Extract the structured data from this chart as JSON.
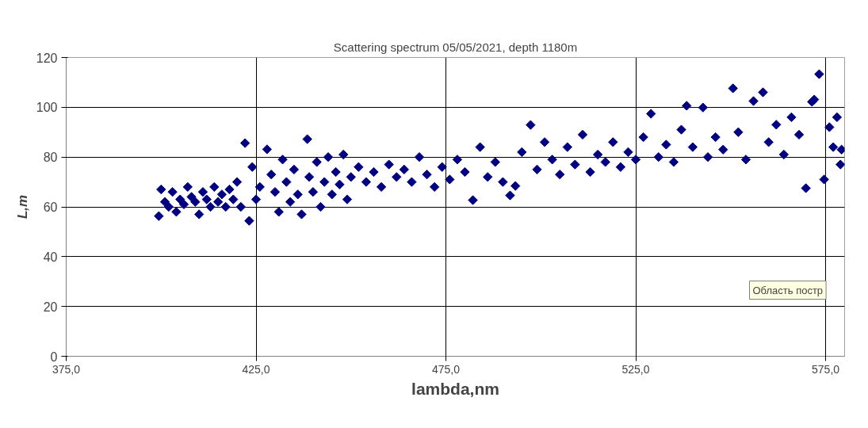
{
  "chart_data": {
    "type": "scatter",
    "title": "Scattering spectrum 05/05/2021, depth 1180m",
    "xlabel": "lambda,nm",
    "ylabel": "L,m",
    "annotations": [
      "Область постр"
    ],
    "xlim": [
      375,
      580
    ],
    "ylim": [
      0,
      120
    ],
    "xticks": [
      {
        "value": 375,
        "label": "375,0"
      },
      {
        "value": 425,
        "label": "425,0"
      },
      {
        "value": 475,
        "label": "475,0"
      },
      {
        "value": 525,
        "label": "525,0"
      },
      {
        "value": 575,
        "label": "575,0"
      }
    ],
    "yticks": [
      0,
      20,
      40,
      60,
      80,
      100,
      120
    ],
    "grid": true,
    "marker": "diamond",
    "x": [
      399.4,
      400,
      401,
      402,
      403,
      404,
      405,
      406,
      407,
      408,
      409,
      410,
      411,
      412,
      413,
      414,
      415,
      416,
      417,
      418,
      419,
      420,
      421,
      422.1,
      423.2,
      424,
      425,
      426,
      427.9,
      429,
      430,
      431,
      432,
      433,
      434,
      435,
      436,
      437,
      438.5,
      439,
      440,
      441,
      442,
      443,
      444,
      445,
      446,
      447,
      448,
      449,
      450,
      452,
      454,
      456,
      458,
      460,
      462,
      464,
      466,
      468,
      470,
      472,
      474,
      476,
      478,
      480,
      482.1,
      484,
      486,
      488,
      490,
      491.9,
      493.3,
      495,
      497.3,
      499,
      501,
      503,
      505,
      507,
      509,
      511,
      513,
      515,
      517,
      519,
      521,
      523,
      525,
      527,
      529,
      531,
      533,
      535,
      537,
      538.4,
      540,
      542.7,
      544,
      546,
      548,
      550.6,
      552,
      554,
      556,
      558.5,
      560,
      562,
      564,
      566,
      568,
      569.8,
      571.4,
      572,
      573.3,
      574.6,
      576,
      577,
      578,
      578.9,
      579.2
    ],
    "series": [
      {
        "color": "#000080",
        "values": [
          56.3,
          67,
          62,
          60,
          66,
          58,
          63,
          61,
          68,
          64,
          62,
          57,
          66,
          63,
          60,
          68,
          62,
          65,
          60,
          67,
          63,
          70,
          60,
          85.6,
          54.4,
          76,
          63,
          68,
          83.1,
          73,
          66,
          58,
          79,
          70,
          62,
          75,
          65,
          57,
          87.2,
          72,
          66,
          78,
          60,
          70,
          80,
          65,
          74,
          69,
          81,
          63,
          72,
          76,
          70,
          74,
          68,
          77,
          72,
          75,
          70,
          80,
          73,
          68,
          76,
          71,
          79,
          74,
          62.7,
          84,
          72,
          78,
          70,
          64.6,
          68.4,
          82,
          92.9,
          75,
          86,
          79,
          73,
          84,
          77,
          89,
          74,
          81,
          78,
          86,
          76,
          82,
          79,
          88,
          97.4,
          80,
          85,
          78,
          91,
          100.6,
          84,
          99.9,
          80,
          88,
          83,
          107.6,
          90,
          79,
          102.5,
          106,
          86,
          93,
          81,
          96,
          89,
          67.5,
          102.2,
          103.1,
          113.3,
          71,
          92,
          84,
          96,
          77,
          83
        ]
      }
    ]
  }
}
